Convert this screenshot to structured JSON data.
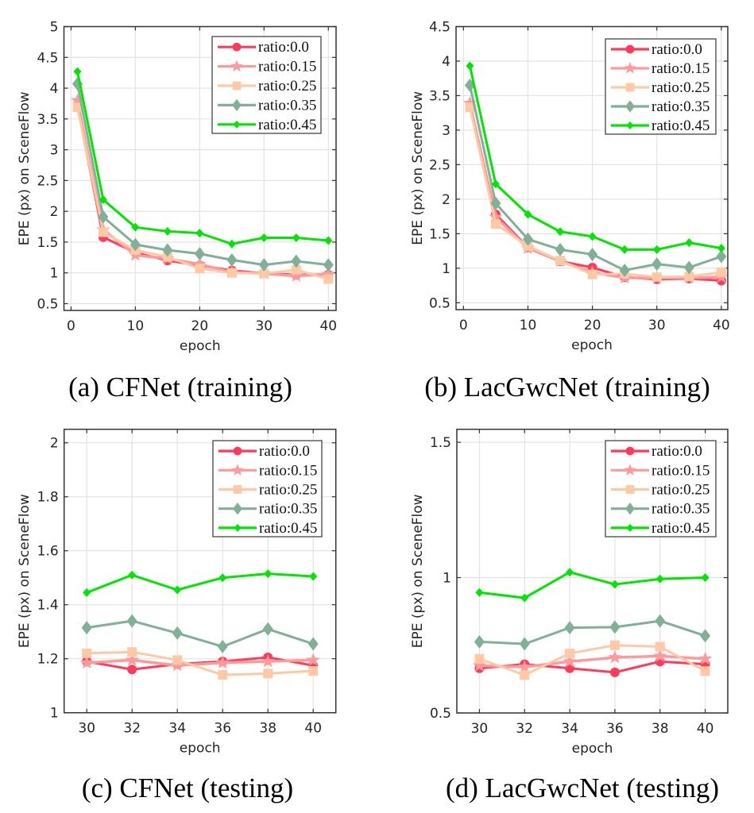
{
  "figure": {
    "series_styles": [
      {
        "name": "ratio:0.0",
        "color": "#ff3b5c",
        "marker": "circle"
      },
      {
        "name": "ratio:0.15",
        "color": "#ff9a9a",
        "marker": "star"
      },
      {
        "name": "ratio:0.25",
        "color": "#ffc9a6",
        "marker": "square"
      },
      {
        "name": "ratio:0.35",
        "color": "#80b196",
        "marker": "diamond"
      },
      {
        "name": "ratio:0.45",
        "color": "#00e600",
        "marker": "small-diamond"
      }
    ]
  },
  "chart_data": [
    {
      "id": "a",
      "type": "line",
      "caption": "(a) CFNet (training)",
      "title": "",
      "xlabel": "epoch",
      "ylabel": "EPE (px) on SceneFlow",
      "xlim": [
        -1.1,
        41.2
      ],
      "ylim": [
        0.39,
        5.0
      ],
      "xticks": [
        0,
        10,
        20,
        30,
        40
      ],
      "xtick_labels": [
        "0",
        "10",
        "20",
        "30",
        "40"
      ],
      "yticks": [
        0.5,
        1,
        1.5,
        2,
        2.5,
        3,
        3.5,
        4,
        4.5,
        5
      ],
      "ytick_labels": [
        "0.5",
        "1",
        "1.5",
        "2",
        "2.5",
        "3",
        "3.5",
        "4",
        "4.5",
        "5"
      ],
      "grid": true,
      "legend_position": "top-right",
      "x": [
        1,
        5,
        10,
        15,
        20,
        25,
        30,
        35,
        40
      ],
      "series": [
        {
          "name": "ratio:0.0",
          "values": [
            3.72,
            1.58,
            1.33,
            1.2,
            1.12,
            1.04,
            0.99,
            0.97,
            0.97
          ]
        },
        {
          "name": "ratio:0.15",
          "values": [
            3.8,
            1.7,
            1.29,
            1.23,
            1.14,
            1.01,
            0.99,
            0.95,
            0.98
          ]
        },
        {
          "name": "ratio:0.25",
          "values": [
            3.69,
            1.66,
            1.37,
            1.26,
            1.07,
            1.0,
            0.99,
            1.05,
            0.9
          ]
        },
        {
          "name": "ratio:0.35",
          "values": [
            4.07,
            1.91,
            1.46,
            1.37,
            1.31,
            1.21,
            1.13,
            1.19,
            1.13
          ]
        },
        {
          "name": "ratio:0.45",
          "values": [
            4.27,
            2.19,
            1.74,
            1.675,
            1.645,
            1.47,
            1.57,
            1.57,
            1.525
          ]
        }
      ]
    },
    {
      "id": "b",
      "type": "line",
      "caption": "(b) LacGwcNet (training)",
      "title": "",
      "xlabel": "epoch",
      "ylabel": "EPE (px) on SceneFlow",
      "xlim": [
        -1.15,
        41.0
      ],
      "ylim": [
        0.4,
        4.5
      ],
      "xticks": [
        0,
        10,
        20,
        30,
        40
      ],
      "xtick_labels": [
        "0",
        "10",
        "20",
        "30",
        "40"
      ],
      "yticks": [
        0.5,
        1,
        1.5,
        2,
        2.5,
        3,
        3.5,
        4,
        4.5
      ],
      "ytick_labels": [
        "0.5",
        "1",
        "1.5",
        "2",
        "2.5",
        "3",
        "3.5",
        "4",
        "4.5"
      ],
      "grid": true,
      "legend_position": "top-right",
      "x": [
        1,
        5,
        10,
        15,
        20,
        25,
        30,
        35,
        40
      ],
      "series": [
        {
          "name": "ratio:0.0",
          "values": [
            3.35,
            1.78,
            1.3,
            1.1,
            1.01,
            0.87,
            0.84,
            0.85,
            0.82
          ]
        },
        {
          "name": "ratio:0.15",
          "values": [
            3.39,
            1.74,
            1.29,
            1.1,
            0.94,
            0.86,
            0.86,
            0.86,
            0.87
          ]
        },
        {
          "name": "ratio:0.25",
          "values": [
            3.33,
            1.64,
            1.32,
            1.11,
            0.91,
            0.92,
            0.87,
            0.88,
            0.94
          ]
        },
        {
          "name": "ratio:0.35",
          "values": [
            3.65,
            1.94,
            1.42,
            1.27,
            1.2,
            0.97,
            1.06,
            1.01,
            1.17
          ]
        },
        {
          "name": "ratio:0.45",
          "values": [
            3.93,
            2.22,
            1.78,
            1.53,
            1.46,
            1.27,
            1.27,
            1.37,
            1.29
          ]
        }
      ]
    },
    {
      "id": "c",
      "type": "line",
      "caption": "(c) CFNet (testing)",
      "title": "",
      "xlabel": "epoch",
      "ylabel": "EPE (px) on SceneFlow",
      "xlim": [
        29,
        41
      ],
      "ylim": [
        1.0,
        2.05
      ],
      "xticks": [
        30,
        32,
        34,
        36,
        38,
        40
      ],
      "xtick_labels": [
        "30",
        "32",
        "34",
        "36",
        "38",
        "40"
      ],
      "yticks": [
        1,
        1.2,
        1.4,
        1.6,
        1.8,
        2
      ],
      "ytick_labels": [
        "1",
        "1.2",
        "1.4",
        "1.6",
        "1.8",
        "2"
      ],
      "grid": true,
      "legend_position": "top-right",
      "x": [
        30,
        32,
        34,
        36,
        38,
        40
      ],
      "series": [
        {
          "name": "ratio:0.0",
          "values": [
            1.19,
            1.16,
            1.18,
            1.19,
            1.205,
            1.175
          ]
        },
        {
          "name": "ratio:0.15",
          "values": [
            1.185,
            1.195,
            1.175,
            1.185,
            1.19,
            1.195
          ]
        },
        {
          "name": "ratio:0.25",
          "values": [
            1.22,
            1.225,
            1.195,
            1.14,
            1.145,
            1.155
          ]
        },
        {
          "name": "ratio:0.35",
          "values": [
            1.315,
            1.34,
            1.295,
            1.245,
            1.31,
            1.255
          ]
        },
        {
          "name": "ratio:0.45",
          "values": [
            1.445,
            1.51,
            1.455,
            1.5,
            1.515,
            1.505
          ]
        }
      ]
    },
    {
      "id": "d",
      "type": "line",
      "caption": "(d) LacGwcNet (testing)",
      "title": "",
      "xlabel": "epoch",
      "ylabel": "EPE (px) on SceneFlow",
      "xlim": [
        29,
        41
      ],
      "ylim": [
        0.5,
        1.548
      ],
      "xticks": [
        30,
        32,
        34,
        36,
        38,
        40
      ],
      "xtick_labels": [
        "30",
        "32",
        "34",
        "36",
        "38",
        "40"
      ],
      "yticks": [
        0.5,
        1,
        1.5
      ],
      "ytick_labels": [
        "0.5",
        "1",
        "1.5"
      ],
      "grid": true,
      "legend_position": "top-right",
      "x": [
        30,
        32,
        34,
        36,
        38,
        40
      ],
      "series": [
        {
          "name": "ratio:0.0",
          "values": [
            0.665,
            0.68,
            0.665,
            0.65,
            0.69,
            0.68
          ]
        },
        {
          "name": "ratio:0.15",
          "values": [
            0.675,
            0.67,
            0.69,
            0.705,
            0.71,
            0.7
          ]
        },
        {
          "name": "ratio:0.25",
          "values": [
            0.7,
            0.64,
            0.72,
            0.75,
            0.745,
            0.655
          ]
        },
        {
          "name": "ratio:0.35",
          "values": [
            0.763,
            0.755,
            0.815,
            0.817,
            0.84,
            0.785
          ]
        },
        {
          "name": "ratio:0.45",
          "values": [
            0.945,
            0.925,
            1.02,
            0.975,
            0.995,
            1.0
          ]
        }
      ]
    }
  ]
}
